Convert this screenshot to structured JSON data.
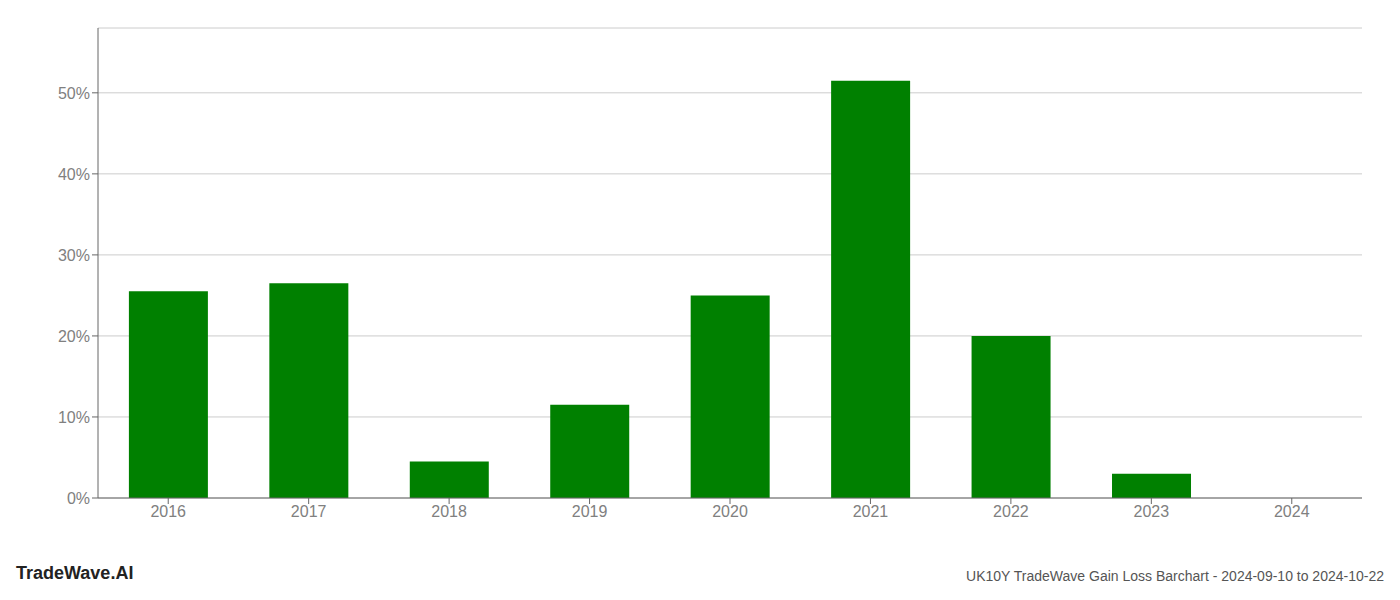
{
  "chart_data": {
    "type": "bar",
    "categories": [
      "2016",
      "2017",
      "2018",
      "2019",
      "2020",
      "2021",
      "2022",
      "2023",
      "2024"
    ],
    "values": [
      0.255,
      0.265,
      0.045,
      0.115,
      0.25,
      0.515,
      0.2,
      0.03,
      0.0
    ],
    "color": "#008000",
    "ylim": [
      0,
      0.58
    ],
    "yticks": [
      {
        "value": 0.0,
        "label": "0%"
      },
      {
        "value": 0.1,
        "label": "10%"
      },
      {
        "value": 0.2,
        "label": "20%"
      },
      {
        "value": 0.3,
        "label": "30%"
      },
      {
        "value": 0.4,
        "label": "40%"
      },
      {
        "value": 0.5,
        "label": "50%"
      }
    ],
    "grid": true,
    "annotations": [
      "TradeWave.AI",
      "UK10Y TradeWave Gain Loss Barchart - 2024-09-10 to 2024-10-22"
    ]
  }
}
